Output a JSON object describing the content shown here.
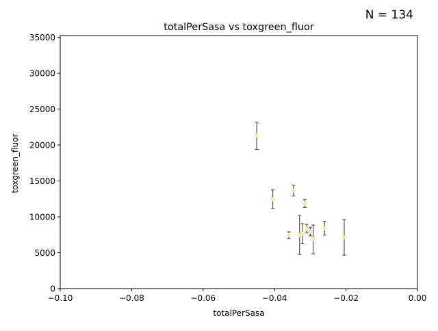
{
  "chart_data": {
    "type": "scatter",
    "title": "totalPerSasa vs toxgreen_fluor",
    "xlabel": "totalPerSasa",
    "ylabel": "toxgreen_fluor",
    "annotation": "N = 134",
    "xlim": [
      -0.1,
      0.0
    ],
    "ylim": [
      0,
      35250
    ],
    "x_ticks": [
      -0.1,
      -0.08,
      -0.06,
      -0.04,
      -0.02,
      0.0
    ],
    "x_tick_labels": [
      "−0.10",
      "−0.08",
      "−0.06",
      "−0.04",
      "−0.02",
      "0.00"
    ],
    "y_ticks": [
      0,
      5000,
      10000,
      15000,
      20000,
      25000,
      30000,
      35000
    ],
    "y_tick_labels": [
      "0",
      "5000",
      "10000",
      "15000",
      "20000",
      "25000",
      "30000",
      "35000"
    ],
    "grid": false,
    "marker_color": "#ffe4b5",
    "errorbar_color": "#555555",
    "points": [
      {
        "x": -0.045,
        "y": 21300,
        "err": 1900
      },
      {
        "x": -0.0347,
        "y": 13650,
        "err": 750
      },
      {
        "x": -0.0405,
        "y": 12450,
        "err": 1300
      },
      {
        "x": -0.0315,
        "y": 11850,
        "err": 550
      },
      {
        "x": -0.036,
        "y": 7450,
        "err": 450
      },
      {
        "x": -0.033,
        "y": 7450,
        "err": 2700
      },
      {
        "x": -0.0322,
        "y": 7650,
        "err": 1400
      },
      {
        "x": -0.031,
        "y": 8350,
        "err": 600
      },
      {
        "x": -0.03,
        "y": 7950,
        "err": 600
      },
      {
        "x": -0.0292,
        "y": 6850,
        "err": 2000
      },
      {
        "x": -0.026,
        "y": 8400,
        "err": 950
      },
      {
        "x": -0.0205,
        "y": 7150,
        "err": 2500
      }
    ]
  }
}
